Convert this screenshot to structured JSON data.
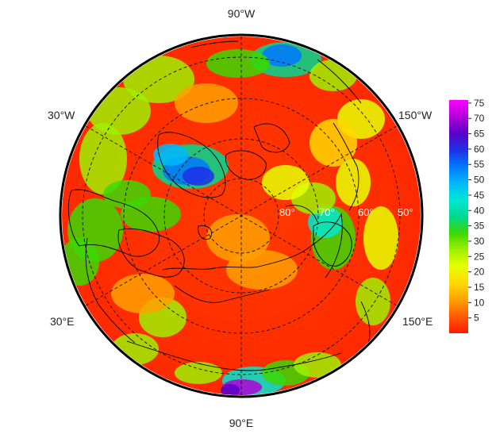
{
  "map": {
    "projection": "north-polar-stereographic",
    "longitude_labels": {
      "top": "90°W",
      "bottom": "90°E",
      "upper_left": "30°W",
      "upper_right": "150°W",
      "lower_left": "30°E",
      "lower_right": "150°E"
    },
    "latitude_labels": [
      "80°",
      "70°",
      "60°",
      "50°"
    ],
    "colors": {
      "boundary": "#000000",
      "graticule": "#111111",
      "coastline": "#000000"
    }
  },
  "colorbar": {
    "ticks": [
      "5",
      "10",
      "15",
      "20",
      "25",
      "30",
      "35",
      "40",
      "45",
      "50",
      "55",
      "60",
      "65",
      "70",
      "75"
    ],
    "min": 0,
    "max": 76,
    "stops": [
      "#ff1a00",
      "#ff5a00",
      "#ffa000",
      "#ffd800",
      "#e8ff00",
      "#a0f000",
      "#3cd800",
      "#00d890",
      "#00e8d0",
      "#00b8ff",
      "#0078ff",
      "#1e30e8",
      "#5a00c8",
      "#b000d8",
      "#ff00ff"
    ]
  }
}
